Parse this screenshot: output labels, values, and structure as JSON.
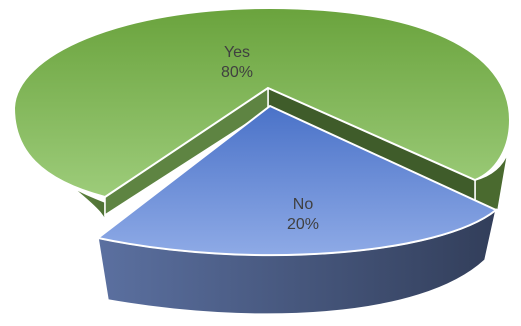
{
  "chart_data": {
    "type": "pie",
    "style": "3d-exploded",
    "title": "",
    "categories": [
      "Yes",
      "No"
    ],
    "values": [
      80,
      20
    ],
    "value_format": "percent",
    "labels": [
      {
        "name": "Yes",
        "value_text": "80%"
      },
      {
        "name": "No",
        "value_text": "20%"
      }
    ],
    "colors": {
      "Yes": "#8cbf63",
      "No": "#6e8fd6"
    },
    "legend": "none",
    "data_labels": "inside"
  }
}
